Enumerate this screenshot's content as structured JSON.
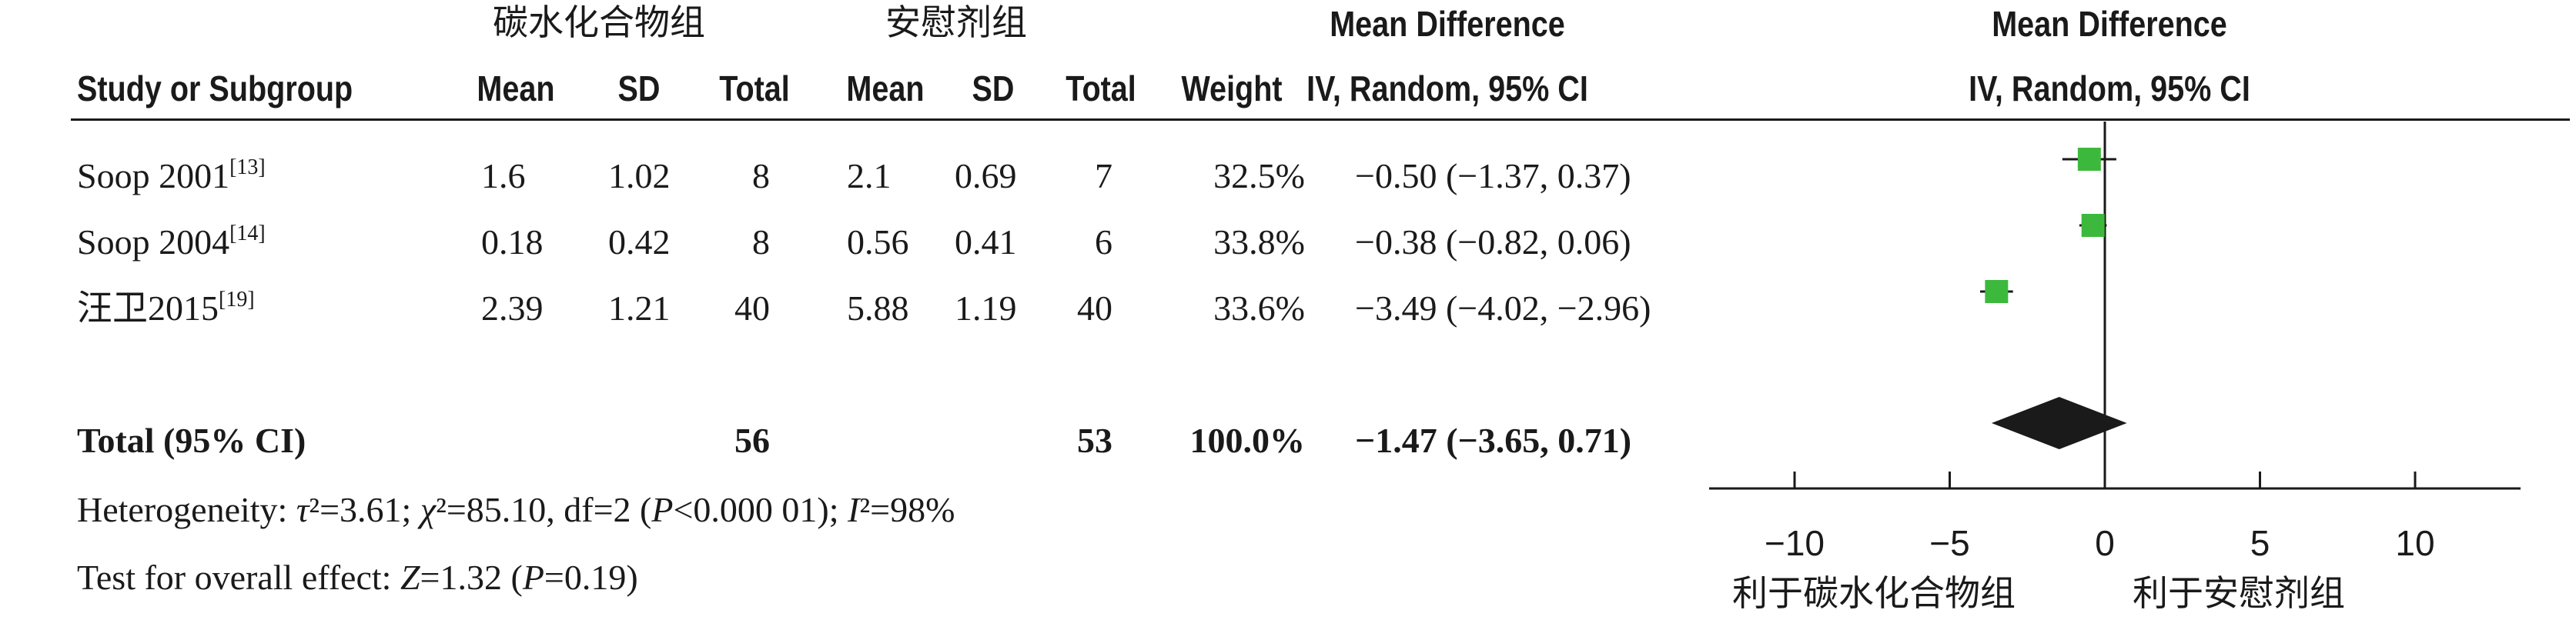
{
  "headers": {
    "group1": "碳水化合物组",
    "group2": "安慰剂组",
    "md_title": "Mean Difference",
    "md_title_plot": "Mean Difference"
  },
  "columns": {
    "study": "Study or Subgroup",
    "mean1": "Mean",
    "sd1": "SD",
    "total1": "Total",
    "mean2": "Mean",
    "sd2": "SD",
    "total2": "Total",
    "weight": "Weight",
    "ci": "IV, Random, 95% CI",
    "ci_plot": "IV, Random, 95% CI"
  },
  "rows": [
    {
      "study": "Soop 2001",
      "ref": "[13]",
      "mean1": "1.6",
      "sd1": "1.02",
      "total1": "8",
      "mean2": "2.1",
      "sd2": "0.69",
      "total2": "7",
      "weight": "32.5%",
      "ci": "−0.50 (−1.37, 0.37)"
    },
    {
      "study": "Soop 2004",
      "ref": "[14]",
      "mean1": "0.18",
      "sd1": "0.42",
      "total1": "8",
      "mean2": "0.56",
      "sd2": "0.41",
      "total2": "6",
      "weight": "33.8%",
      "ci": "−0.38 (−0.82, 0.06)"
    },
    {
      "study": "汪卫2015",
      "ref": "[19]",
      "mean1": "2.39",
      "sd1": "1.21",
      "total1": "40",
      "mean2": "5.88",
      "sd2": "1.19",
      "total2": "40",
      "weight": "33.6%",
      "ci": "−3.49 (−4.02, −2.96)"
    }
  ],
  "total": {
    "label": "Total (95% CI)",
    "total1": "56",
    "total2": "53",
    "weight": "100.0%",
    "ci": "−1.47 (−3.65, 0.71)"
  },
  "footnotes": {
    "het_a": "Heterogeneity: ",
    "het_tau": "τ",
    "het_b": "²=3.61; ",
    "het_chi": "χ",
    "het_c": "²=85.10, df=2 (",
    "het_p": "P",
    "het_d": "<0.000 01); ",
    "het_i": "I",
    "het_e": "²=98%",
    "eff_a": "Test for overall effect: ",
    "eff_z": "Z",
    "eff_b": "=1.32 (",
    "eff_p": "P",
    "eff_c": "=0.19)"
  },
  "chart_data": {
    "type": "forest",
    "xlim": [
      -10,
      10
    ],
    "ticks": [
      -10,
      -5,
      0,
      5,
      10
    ],
    "tick_labels": [
      "−10",
      "−5",
      "0",
      "5",
      "10"
    ],
    "studies": [
      {
        "md": -0.5,
        "lo": -1.37,
        "hi": 0.37,
        "weight": 32.5
      },
      {
        "md": -0.38,
        "lo": -0.82,
        "hi": 0.06,
        "weight": 33.8
      },
      {
        "md": -3.49,
        "lo": -4.02,
        "hi": -2.96,
        "weight": 33.6
      }
    ],
    "pooled": {
      "md": -1.47,
      "lo": -3.65,
      "hi": 0.71
    },
    "marker_color": "#3cb93c",
    "diamond_color": "#1a1a1a",
    "favours_left": "利于碳水化合物组",
    "favours_right": "利于安慰剂组"
  }
}
